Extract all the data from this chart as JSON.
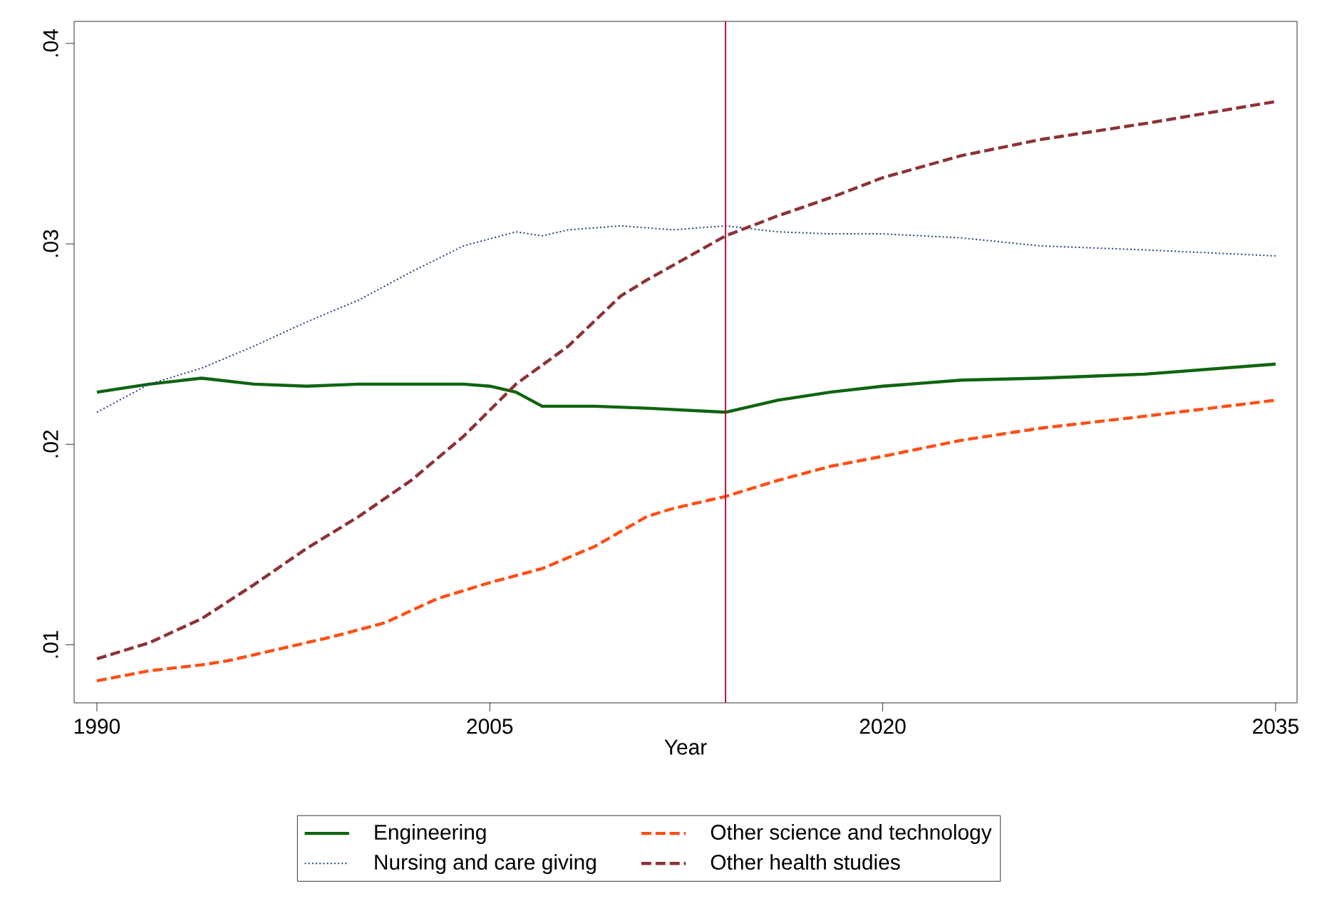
{
  "chart_data": {
    "type": "line",
    "xlabel": "Year",
    "xlim": [
      1989.13,
      2035.82
    ],
    "xticks": [
      1990,
      2005,
      2020,
      2035
    ],
    "ylim": [
      0.0071,
      0.0411
    ],
    "yticks": [
      {
        "value": 0.01,
        "label": ".01"
      },
      {
        "value": 0.02,
        "label": ".02"
      },
      {
        "value": 0.03,
        "label": ".03"
      },
      {
        "value": 0.04,
        "label": ".04"
      }
    ],
    "grid": false,
    "legend": "bottom",
    "ref_lines": [
      {
        "axis": "x",
        "value": 2014,
        "color": "#b5123e",
        "line_style": "solid"
      }
    ],
    "series": [
      {
        "name": "Engineering",
        "color": "#0f6410",
        "line_style": "solid",
        "x": [
          1990,
          1992,
          1994,
          1996,
          1998,
          2000,
          2002,
          2004,
          2005,
          2006,
          2007,
          2009,
          2011,
          2014,
          2016,
          2018,
          2020,
          2023,
          2026,
          2030,
          2035
        ],
        "values": [
          0.0226,
          0.023,
          0.0233,
          0.023,
          0.0229,
          0.023,
          0.023,
          0.023,
          0.0229,
          0.0226,
          0.0219,
          0.0219,
          0.0218,
          0.0216,
          0.0222,
          0.0226,
          0.0229,
          0.0232,
          0.0233,
          0.0235,
          0.024
        ]
      },
      {
        "name": "Other science and technology",
        "color": "#ff4f14",
        "line_style": "dashed",
        "x": [
          1990,
          1992,
          1994,
          1995,
          1997,
          1999,
          2001,
          2003,
          2005,
          2007,
          2009,
          2011,
          2012,
          2014,
          2016,
          2018,
          2020,
          2023,
          2026,
          2030,
          2035
        ],
        "values": [
          0.0082,
          0.0087,
          0.009,
          0.0092,
          0.0098,
          0.0104,
          0.0111,
          0.0123,
          0.0131,
          0.0138,
          0.0149,
          0.0164,
          0.0168,
          0.0174,
          0.0182,
          0.0189,
          0.0194,
          0.0202,
          0.0208,
          0.0214,
          0.0222
        ]
      },
      {
        "name": "Nursing and care giving",
        "color": "#1e3f80",
        "line_style": "dotted",
        "x": [
          1990,
          1992,
          1994,
          1996,
          1998,
          2000,
          2002,
          2004,
          2006,
          2007,
          2008,
          2010,
          2012,
          2014,
          2016,
          2018,
          2020,
          2023,
          2026,
          2030,
          2035
        ],
        "values": [
          0.0216,
          0.023,
          0.0238,
          0.0249,
          0.0261,
          0.0272,
          0.0286,
          0.0299,
          0.0306,
          0.0304,
          0.0307,
          0.0309,
          0.0307,
          0.0309,
          0.0306,
          0.0305,
          0.0305,
          0.0303,
          0.0299,
          0.0297,
          0.0294
        ]
      },
      {
        "name": "Other health studies",
        "color": "#8c3236",
        "line_style": "dashed",
        "x": [
          1990,
          1992,
          1994,
          1996,
          1998,
          2000,
          2002,
          2004,
          2006,
          2008,
          2010,
          2011,
          2014,
          2016,
          2018,
          2020,
          2023,
          2026,
          2030,
          2035
        ],
        "values": [
          0.0093,
          0.0101,
          0.0113,
          0.013,
          0.0148,
          0.0164,
          0.0182,
          0.0204,
          0.023,
          0.0249,
          0.0274,
          0.0282,
          0.0304,
          0.0314,
          0.0323,
          0.0333,
          0.0344,
          0.0352,
          0.036,
          0.0371
        ]
      }
    ]
  }
}
